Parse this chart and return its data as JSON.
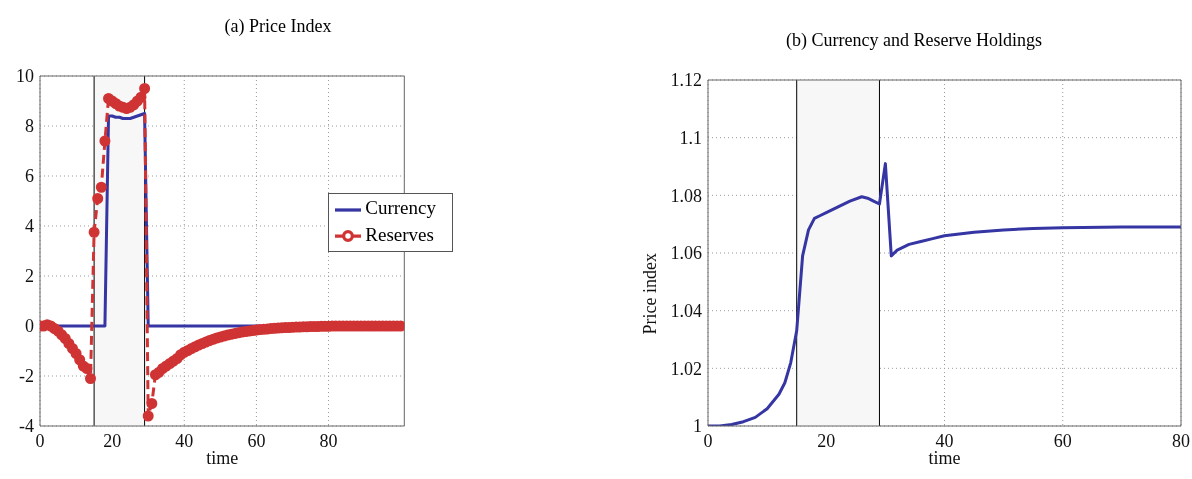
{
  "chart_data": [
    {
      "type": "line",
      "title": "(a) Price Index",
      "xlabel": "time",
      "x": [
        0,
        1,
        2,
        3,
        4,
        5,
        6,
        7,
        8,
        9,
        10,
        11,
        12,
        13,
        14,
        15,
        16,
        17,
        18,
        19,
        20,
        21,
        22,
        23,
        24,
        25,
        26,
        27,
        28,
        29,
        30,
        31,
        32,
        33,
        34,
        35,
        36,
        37,
        38,
        39,
        40,
        41,
        42,
        43,
        44,
        45,
        46,
        47,
        48,
        49,
        50,
        51,
        52,
        53,
        54,
        55,
        56,
        57,
        58,
        59,
        60,
        61,
        62,
        63,
        64,
        65,
        66,
        67,
        68,
        69,
        70,
        71,
        72,
        73,
        74,
        75,
        76,
        77,
        78,
        79,
        80,
        81,
        82,
        83,
        84,
        85,
        86,
        87,
        88,
        89,
        90,
        91,
        92,
        93,
        94,
        95,
        96,
        97,
        98,
        99,
        100
      ],
      "series": [
        {
          "name": "Currency",
          "color": "#3535a3",
          "marker": "none",
          "line_style": "solid",
          "values": [
            null,
            null,
            null,
            0,
            0,
            0,
            0,
            0,
            0,
            0,
            0,
            0,
            0,
            0,
            0,
            0,
            0,
            0,
            0,
            8.4,
            8.4,
            8.35,
            8.35,
            8.3,
            8.3,
            8.3,
            8.35,
            8.4,
            8.45,
            8.5,
            0,
            0,
            0,
            0,
            0,
            0,
            0,
            0,
            0,
            0,
            0,
            0,
            0,
            0,
            0,
            0,
            0,
            0,
            0,
            0,
            0,
            0,
            0,
            0,
            0,
            0,
            0,
            0,
            0,
            0,
            0,
            0,
            null,
            null,
            null,
            null,
            null,
            null,
            null,
            null,
            null,
            null,
            null,
            null,
            null,
            null,
            null,
            null,
            null,
            null,
            null,
            null,
            null,
            null,
            null,
            null,
            null,
            null,
            null,
            null,
            null,
            null,
            null,
            null,
            null,
            null,
            null,
            null,
            null,
            null,
            null
          ]
        },
        {
          "name": "Reserves",
          "color": "#cf3333",
          "marker": "circle",
          "line_style": "dashed",
          "values": [
            0,
            0,
            0.05,
            0,
            -0.1,
            -0.2,
            -0.35,
            -0.5,
            -0.7,
            -0.9,
            -1.1,
            -1.35,
            -1.6,
            -1.7,
            -2.1,
            3.75,
            5.1,
            5.55,
            7.4,
            9.1,
            9.0,
            8.9,
            8.8,
            8.75,
            8.7,
            8.75,
            8.85,
            9.0,
            9.15,
            9.5,
            -3.6,
            -3.1,
            -1.95,
            -1.85,
            -1.7,
            -1.6,
            -1.5,
            -1.4,
            -1.3,
            -1.15,
            -1.05,
            -0.98,
            -0.9,
            -0.83,
            -0.76,
            -0.7,
            -0.64,
            -0.58,
            -0.53,
            -0.48,
            -0.44,
            -0.4,
            -0.36,
            -0.33,
            -0.3,
            -0.27,
            -0.24,
            -0.22,
            -0.2,
            -0.18,
            -0.16,
            -0.14,
            -0.13,
            -0.12,
            -0.1,
            -0.09,
            -0.08,
            -0.07,
            -0.06,
            -0.06,
            -0.05,
            -0.04,
            -0.04,
            -0.03,
            -0.03,
            -0.02,
            -0.02,
            -0.02,
            -0.01,
            -0.01,
            -0.01,
            0,
            0,
            0,
            0,
            0,
            0,
            0,
            0,
            0,
            0,
            0,
            0,
            0,
            0,
            0,
            0,
            0,
            0,
            0,
            0
          ]
        }
      ],
      "xlim": [
        0,
        101
      ],
      "xticks": [
        0,
        20,
        40,
        60,
        80
      ],
      "ylim": [
        -4,
        10
      ],
      "yticks": [
        -4,
        -2,
        0,
        2,
        4,
        6,
        8,
        10
      ],
      "grid": true,
      "legend": "right",
      "bands": [
        {
          "axis": "x",
          "from": 15,
          "to": 29,
          "color": "#f7f7f7"
        }
      ],
      "ref_lines": [
        {
          "axis": "x",
          "value": 15,
          "color": "#000000"
        },
        {
          "axis": "x",
          "value": 29,
          "color": "#000000"
        }
      ]
    },
    {
      "type": "line",
      "title": "(b) Currency and Reserve Holdings",
      "xlabel": "time",
      "ylabel": "Price index",
      "x": [
        0,
        2,
        4,
        6,
        8,
        10,
        12,
        13,
        14,
        15,
        16,
        17,
        18,
        19,
        20,
        22,
        24,
        26,
        27,
        28,
        29,
        30,
        31,
        32,
        34,
        36,
        38,
        40,
        45,
        50,
        55,
        60,
        70,
        80
      ],
      "series": [
        {
          "color": "#3535a3",
          "values": [
            1,
            1,
            1.0005,
            1.0015,
            1.003,
            1.006,
            1.011,
            1.015,
            1.022,
            1.033,
            1.059,
            1.068,
            1.072,
            1.073,
            1.074,
            1.076,
            1.078,
            1.0795,
            1.079,
            1.078,
            1.077,
            1.091,
            1.059,
            1.061,
            1.063,
            1.064,
            1.065,
            1.066,
            1.0672,
            1.068,
            1.0685,
            1.0688,
            1.069,
            1.069
          ]
        }
      ],
      "xlim": [
        0,
        80
      ],
      "xticks": [
        0,
        20,
        40,
        60,
        80
      ],
      "ylim": [
        1,
        1.12
      ],
      "yticks": [
        1,
        1.02,
        1.04,
        1.06,
        1.08,
        1.1,
        1.12
      ],
      "grid": true,
      "bands": [
        {
          "axis": "x",
          "from": 15,
          "to": 29,
          "color": "#f7f7f7"
        }
      ],
      "ref_lines": [
        {
          "axis": "x",
          "value": 15,
          "color": "#000000"
        },
        {
          "axis": "x",
          "value": 29,
          "color": "#000000"
        }
      ]
    }
  ]
}
